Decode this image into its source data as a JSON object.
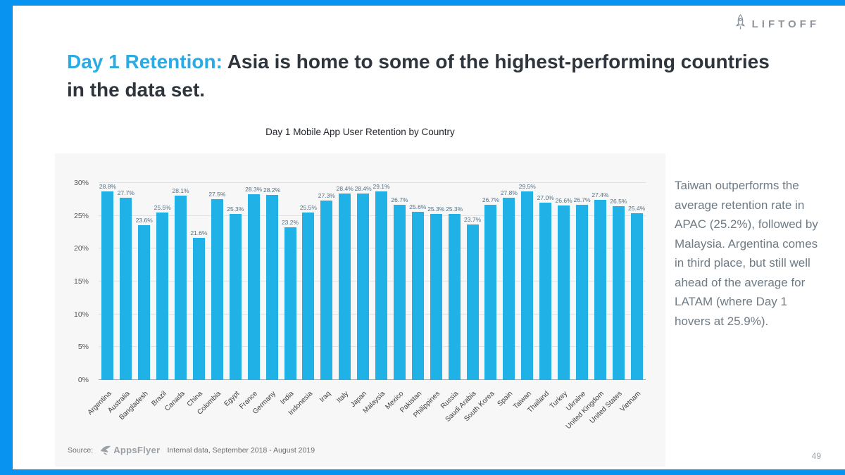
{
  "accent": {
    "frame_color": "#0793ef",
    "bar_color": "#20b1e7",
    "title_highlight_color": "#2caae2"
  },
  "header": {
    "brand": "LIFTOFF"
  },
  "title": {
    "highlight": "Day 1 Retention:",
    "rest": "Asia is home to some of the highest-performing countries in the data set."
  },
  "chart_data": {
    "type": "bar",
    "title": "Day 1 Mobile App User Retention by Country",
    "categories": [
      "Argentina",
      "Australia",
      "Bangladesh",
      "Brazil",
      "Canada",
      "China",
      "Colombia",
      "Egypt",
      "France",
      "Germany",
      "India",
      "Indonesia",
      "Iraq",
      "Italy",
      "Japan",
      "Malaysia",
      "Mexico",
      "Pakistan",
      "Philippines",
      "Russia",
      "Saudi Arabia",
      "South Korea",
      "Spain",
      "Taiwan",
      "Thailand",
      "Turkey",
      "Ukraine",
      "United Kingdom",
      "United States",
      "Vietnam"
    ],
    "values": [
      28.8,
      27.7,
      23.6,
      25.5,
      28.1,
      21.6,
      27.5,
      25.3,
      28.3,
      28.2,
      23.2,
      25.5,
      27.3,
      28.4,
      28.4,
      29.1,
      26.7,
      25.6,
      25.3,
      25.3,
      23.7,
      26.7,
      27.8,
      29.5,
      27.0,
      26.6,
      26.7,
      27.4,
      26.5,
      25.4
    ],
    "xlabel": "",
    "ylabel": "",
    "ylim": [
      0,
      30
    ],
    "yticks": [
      0,
      5,
      10,
      15,
      20,
      25,
      30
    ],
    "ytick_suffix": "%",
    "grid": true,
    "legend": "none"
  },
  "sidebar": {
    "text": "Taiwan outperforms the average retention rate in APAC (25.2%), followed by Malaysia. Argentina comes in third place, but still well ahead of the average for LATAM (where Day 1 hovers at 25.9%)."
  },
  "footer": {
    "source_label": "Source:",
    "source_brand": "AppsFlyer",
    "source_note": "Internal data, September 2018 - August 2019",
    "page_number": "49"
  }
}
